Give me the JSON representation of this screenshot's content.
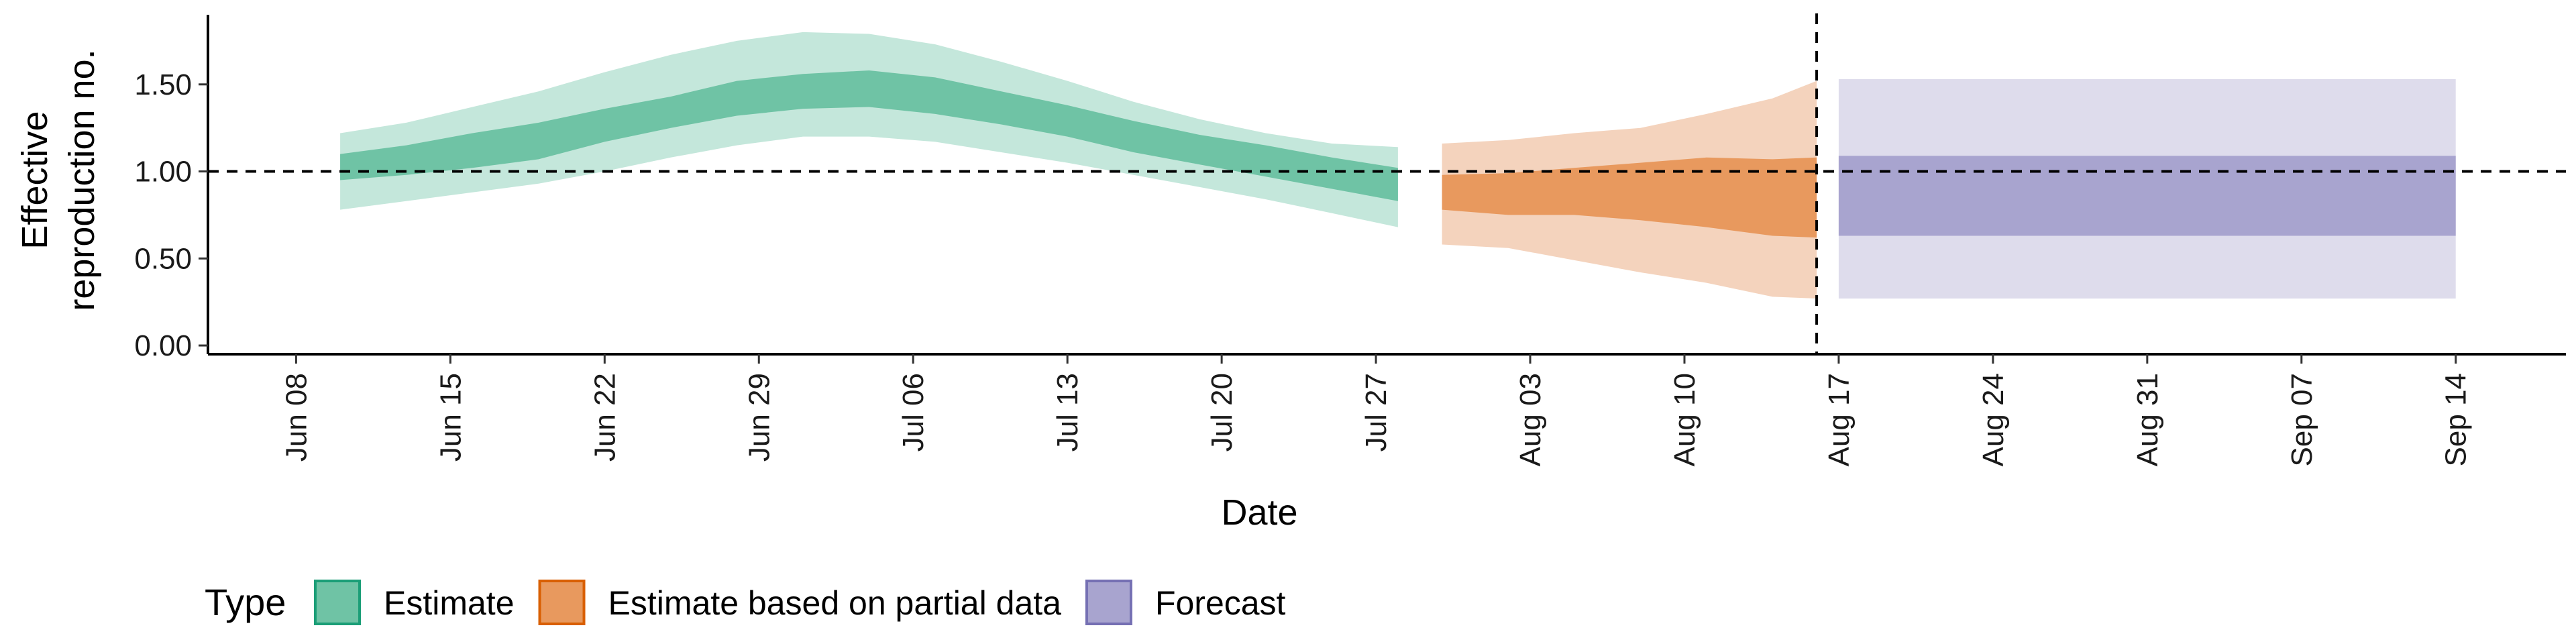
{
  "chart_data": {
    "type": "area",
    "title": "",
    "xlabel": "Date",
    "ylabel_lines": [
      "Effective",
      "reproduction no."
    ],
    "ylim": [
      -0.05,
      1.9
    ],
    "yticks": [
      0.0,
      0.5,
      1.0,
      1.5
    ],
    "ytick_labels": [
      "0.00",
      "0.50",
      "1.00",
      "1.50"
    ],
    "xlim": [
      "2020-06-04",
      "2020-09-19"
    ],
    "xticks": [
      "2020-06-08",
      "2020-06-15",
      "2020-06-22",
      "2020-06-29",
      "2020-07-06",
      "2020-07-13",
      "2020-07-20",
      "2020-07-27",
      "2020-08-03",
      "2020-08-10",
      "2020-08-17",
      "2020-08-24",
      "2020-08-31",
      "2020-09-07",
      "2020-09-14"
    ],
    "xtick_labels": [
      "Jun 08",
      "Jun 15",
      "Jun 22",
      "Jun 29",
      "Jul 06",
      "Jul 13",
      "Jul 20",
      "Jul 27",
      "Aug 03",
      "Aug 10",
      "Aug 17",
      "Aug 24",
      "Aug 31",
      "Sep 07",
      "Sep 14"
    ],
    "reference_line_y": 1.0,
    "reference_line_x": "2020-08-16",
    "grid": false,
    "legend": {
      "title": "Type",
      "position": "bottom",
      "entries": [
        {
          "label": "Estimate",
          "fill": "#6fc3a5",
          "stroke": "#1b9e77"
        },
        {
          "label": "Estimate based on partial data",
          "fill": "#e8995e",
          "stroke": "#d95f02"
        },
        {
          "label": "Forecast",
          "fill": "#a8a4cf",
          "stroke": "#7570b3"
        }
      ]
    },
    "series": [
      {
        "name": "Estimate",
        "colors": {
          "outer": "#c4e7db",
          "inner": "#6fc3a5"
        },
        "points": [
          {
            "x": "2020-06-10",
            "outer": [
              0.78,
              1.22
            ],
            "inner": [
              0.95,
              1.1
            ]
          },
          {
            "x": "2020-06-13",
            "outer": [
              0.83,
              1.28
            ],
            "inner": [
              0.98,
              1.15
            ]
          },
          {
            "x": "2020-06-16",
            "outer": [
              0.88,
              1.37
            ],
            "inner": [
              1.02,
              1.22
            ]
          },
          {
            "x": "2020-06-19",
            "outer": [
              0.93,
              1.46
            ],
            "inner": [
              1.07,
              1.28
            ]
          },
          {
            "x": "2020-06-22",
            "outer": [
              1.0,
              1.57
            ],
            "inner": [
              1.17,
              1.36
            ]
          },
          {
            "x": "2020-06-25",
            "outer": [
              1.08,
              1.67
            ],
            "inner": [
              1.25,
              1.43
            ]
          },
          {
            "x": "2020-06-28",
            "outer": [
              1.15,
              1.75
            ],
            "inner": [
              1.32,
              1.52
            ]
          },
          {
            "x": "2020-07-01",
            "outer": [
              1.2,
              1.8
            ],
            "inner": [
              1.36,
              1.56
            ]
          },
          {
            "x": "2020-07-04",
            "outer": [
              1.2,
              1.79
            ],
            "inner": [
              1.37,
              1.58
            ]
          },
          {
            "x": "2020-07-07",
            "outer": [
              1.17,
              1.73
            ],
            "inner": [
              1.33,
              1.54
            ]
          },
          {
            "x": "2020-07-10",
            "outer": [
              1.11,
              1.63
            ],
            "inner": [
              1.27,
              1.46
            ]
          },
          {
            "x": "2020-07-13",
            "outer": [
              1.05,
              1.52
            ],
            "inner": [
              1.2,
              1.38
            ]
          },
          {
            "x": "2020-07-16",
            "outer": [
              0.98,
              1.4
            ],
            "inner": [
              1.11,
              1.29
            ]
          },
          {
            "x": "2020-07-19",
            "outer": [
              0.91,
              1.3
            ],
            "inner": [
              1.04,
              1.21
            ]
          },
          {
            "x": "2020-07-22",
            "outer": [
              0.84,
              1.22
            ],
            "inner": [
              0.97,
              1.15
            ]
          },
          {
            "x": "2020-07-25",
            "outer": [
              0.76,
              1.16
            ],
            "inner": [
              0.9,
              1.08
            ]
          },
          {
            "x": "2020-07-28",
            "outer": [
              0.68,
              1.14
            ],
            "inner": [
              0.83,
              1.02
            ]
          }
        ]
      },
      {
        "name": "Estimate based on partial data",
        "colors": {
          "outer": "#f4d3bd",
          "inner": "#e8995e"
        },
        "points": [
          {
            "x": "2020-07-30",
            "outer": [
              0.58,
              1.16
            ],
            "inner": [
              0.78,
              0.98
            ]
          },
          {
            "x": "2020-08-02",
            "outer": [
              0.56,
              1.18
            ],
            "inner": [
              0.75,
              0.99
            ]
          },
          {
            "x": "2020-08-05",
            "outer": [
              0.49,
              1.22
            ],
            "inner": [
              0.75,
              1.02
            ]
          },
          {
            "x": "2020-08-08",
            "outer": [
              0.42,
              1.25
            ],
            "inner": [
              0.72,
              1.05
            ]
          },
          {
            "x": "2020-08-11",
            "outer": [
              0.36,
              1.33
            ],
            "inner": [
              0.68,
              1.08
            ]
          },
          {
            "x": "2020-08-14",
            "outer": [
              0.28,
              1.42
            ],
            "inner": [
              0.63,
              1.07
            ]
          },
          {
            "x": "2020-08-16",
            "outer": [
              0.27,
              1.52
            ],
            "inner": [
              0.62,
              1.08
            ]
          }
        ]
      },
      {
        "name": "Forecast",
        "colors": {
          "outer": "#dedcec",
          "inner": "#a8a4cf"
        },
        "points": [
          {
            "x": "2020-08-17",
            "outer": [
              0.27,
              1.53
            ],
            "inner": [
              0.63,
              1.09
            ]
          },
          {
            "x": "2020-09-14",
            "outer": [
              0.27,
              1.53
            ],
            "inner": [
              0.63,
              1.09
            ]
          }
        ]
      }
    ]
  }
}
